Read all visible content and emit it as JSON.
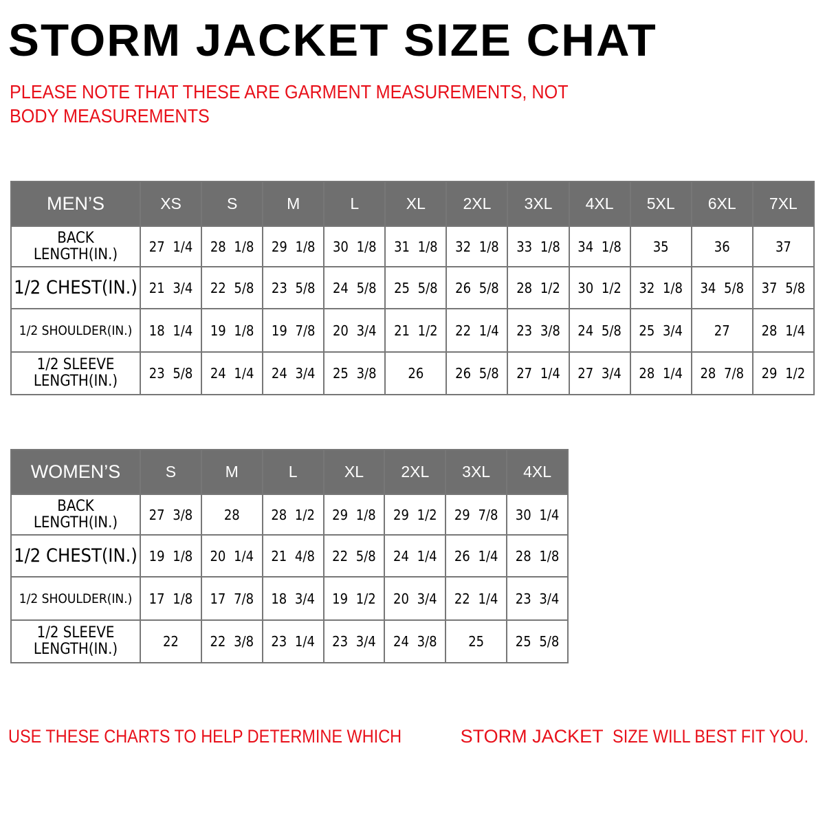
{
  "title": "STORM JACKET SIZE CHAT",
  "note": "PLEASE NOTE THAT THESE ARE GARMENT MEASUREMENTS, NOT BODY MEASUREMENTS",
  "colors": {
    "header_bg": "#6f6f6f",
    "accent_red": "#e8101a"
  },
  "mens": {
    "corner": "MEN’S",
    "sizes": [
      "XS",
      "S",
      "M",
      "L",
      "XL",
      "2XL",
      "3XL",
      "4XL",
      "5XL",
      "6XL",
      "7XL"
    ],
    "rows": [
      {
        "label": "BACK LENGTH(IN.)",
        "values": [
          "27 1/4",
          "28 1/8",
          "29 1/8",
          "30 1/8",
          "31 1/8",
          "32 1/8",
          "33 1/8",
          "34 1/8",
          "35",
          "36",
          "37"
        ]
      },
      {
        "label": "1/2 CHEST(IN.)",
        "values": [
          "21 3/4",
          "22 5/8",
          "23 5/8",
          "24 5/8",
          "25 5/8",
          "26 5/8",
          "28 1/2",
          "30 1/2",
          "32 1/8",
          "34 5/8",
          "37 5/8"
        ]
      },
      {
        "label": "1/2 SHOULDER(IN.)",
        "values": [
          "18 1/4",
          "19 1/8",
          "19 7/8",
          "20 3/4",
          "21 1/2",
          "22 1/4",
          "23 3/8",
          "24 5/8",
          "25 3/4",
          "27",
          "28 1/4"
        ]
      },
      {
        "label": "1/2 SLEEVE LENGTH(IN.)",
        "values": [
          "23 5/8",
          "24 1/4",
          "24 3/4",
          "25 3/8",
          "26",
          "26 5/8",
          "27 1/4",
          "27 3/4",
          "28 1/4",
          "28 7/8",
          "29 1/2"
        ]
      }
    ]
  },
  "womens": {
    "corner": "WOMEN’S",
    "sizes": [
      "S",
      "M",
      "L",
      "XL",
      "2XL",
      "3XL",
      "4XL"
    ],
    "rows": [
      {
        "label": "BACK LENGTH(IN.)",
        "values": [
          "27 3/8",
          "28",
          "28 1/2",
          "29 1/8",
          "29 1/2",
          "29 7/8",
          "30 1/4"
        ]
      },
      {
        "label": "1/2 CHEST(IN.)",
        "values": [
          "19 1/8",
          "20 1/4",
          "21 4/8",
          "22 5/8",
          "24 1/4",
          "26 1/4",
          "28 1/8"
        ]
      },
      {
        "label": "1/2 SHOULDER(IN.)",
        "values": [
          "17 1/8",
          "17 7/8",
          "18 3/4",
          "19 1/2",
          "20 3/4",
          "22 1/4",
          "23 3/4"
        ]
      },
      {
        "label": "1/2 SLEEVE LENGTH(IN.)",
        "values": [
          "22",
          "22 3/8",
          "23 1/4",
          "23 3/4",
          "24 3/8",
          "25",
          "25 5/8"
        ]
      }
    ]
  },
  "footer": {
    "part1": "USE THESE CHARTS TO HELP DETERMINE WHICH ",
    "product": "STORM JACKET",
    "part2": "  SIZE WILL BEST FIT YOU."
  }
}
